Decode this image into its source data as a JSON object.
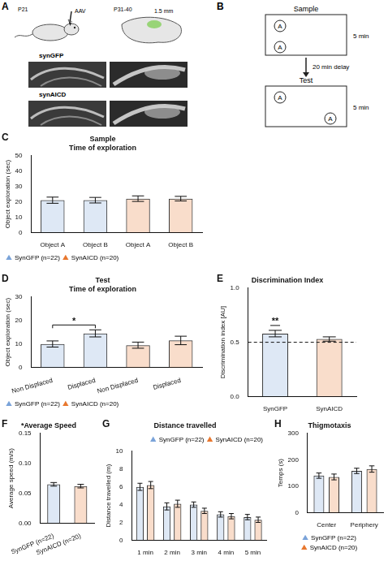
{
  "panels": {
    "A": {
      "label": "A",
      "texts": {
        "age_injection": "P21",
        "injection": "AAV",
        "age_test": "P31-40",
        "depth": "1.5 mm"
      },
      "rows": [
        "synGFP",
        "synAICD"
      ]
    },
    "B": {
      "label": "B",
      "phases": [
        {
          "name": "Sample",
          "duration": "5 min",
          "object": "A"
        },
        {
          "name": "Test",
          "duration": "5 min",
          "object": "A"
        }
      ],
      "delay": "20 min delay"
    }
  },
  "chart_data": [
    {
      "panel": "C",
      "type": "bar",
      "title": "Sample",
      "subtitle": "Time of exploration",
      "y_label": "Object exploration (sec)",
      "categories": [
        "Object A",
        "Object B",
        "Object A",
        "Object B"
      ],
      "series": [
        {
          "name": "SynGFP (n=22)",
          "color": "#7aa3d9",
          "marker": "triangle",
          "values": [
            21,
            21,
            null,
            null
          ],
          "errors": [
            2,
            1.8,
            null,
            null
          ]
        },
        {
          "name": "SynAICD (n=20)",
          "color": "#e8772e",
          "marker": "triangle",
          "values": [
            null,
            null,
            22,
            22
          ],
          "errors": [
            null,
            null,
            1.8,
            1.5
          ]
        }
      ],
      "ylim": [
        0,
        50
      ],
      "yticks": [
        0,
        10,
        20,
        30,
        40,
        50
      ],
      "grid": false,
      "legend": "bottom"
    },
    {
      "panel": "D",
      "type": "bar",
      "title": "Test",
      "subtitle": "Time of exploration",
      "y_label": "Object exploration (sec)",
      "categories": [
        "Non Displaced",
        "Displaced",
        "Non Displaced",
        "Displaced"
      ],
      "series": [
        {
          "name": "SynGFP (n=22)",
          "color": "#7aa3d9",
          "marker": "triangle",
          "values": [
            10,
            14.5,
            null,
            null
          ],
          "errors": [
            1.3,
            1.5,
            null,
            null
          ]
        },
        {
          "name": "SynAICD (n=20)",
          "color": "#e8772e",
          "marker": "triangle",
          "values": [
            null,
            null,
            9.5,
            11.5
          ],
          "errors": [
            null,
            null,
            1.3,
            1.8
          ]
        }
      ],
      "annotations": [
        {
          "text": "*",
          "series": "SynGFP (n=22)",
          "between": [
            "Non Displaced",
            "Displaced"
          ]
        }
      ],
      "ylim": [
        0,
        30
      ],
      "yticks": [
        0,
        10,
        20,
        30
      ],
      "grid": false,
      "legend": "bottom"
    },
    {
      "panel": "E",
      "type": "bar",
      "title": "Discrimination Index",
      "y_label": "Discrimination index [AU]",
      "categories": [
        "SynGFP",
        "SynAICD"
      ],
      "values": [
        0.58,
        0.53
      ],
      "errors": [
        0.03,
        0.02
      ],
      "colors": [
        "#7aa3d9",
        "#e8772e"
      ],
      "reference_lines": [
        {
          "value": 0.5,
          "line_style": "dashed"
        }
      ],
      "annotations": [
        {
          "text": "**",
          "between": [
            "SynGFP"
          ]
        }
      ],
      "ylim": [
        0,
        1
      ],
      "yticks": [
        {
          "value": 0,
          "label": "0.0"
        },
        {
          "value": 0.5,
          "label": "0.5"
        },
        {
          "value": 1,
          "label": "1.0"
        }
      ],
      "grid": false
    },
    {
      "panel": "F",
      "type": "bar",
      "title": "*Average Speed",
      "y_label": "Average speed (m/s)",
      "categories": [
        "SynGFP (n=22)",
        "SynAICD (n=20)"
      ],
      "values": [
        0.065,
        0.062
      ],
      "errors": [
        0.003,
        0.003
      ],
      "colors": [
        "#7aa3d9",
        "#e8772e"
      ],
      "ylim": [
        0,
        0.15
      ],
      "yticks": [
        {
          "value": 0,
          "label": "0.00"
        },
        {
          "value": 0.05,
          "label": "0.05"
        },
        {
          "value": 0.1,
          "label": "0.10"
        },
        {
          "value": 0.15,
          "label": "0.15"
        }
      ],
      "grid": false
    },
    {
      "panel": "G",
      "type": "bar",
      "title": "Distance travelled",
      "y_label": "Distance travelled (m)",
      "categories": [
        "1 min",
        "2 min",
        "3 min",
        "4 min",
        "5 min"
      ],
      "series": [
        {
          "name": "SynGFP (n=22)",
          "color": "#7aa3d9",
          "marker": "triangle",
          "values": [
            6.0,
            3.8,
            4.0,
            2.9,
            2.6
          ],
          "errors": [
            0.4,
            0.4,
            0.3,
            0.3,
            0.3
          ]
        },
        {
          "name": "SynAICD (n=20)",
          "color": "#e8772e",
          "marker": "triangle",
          "values": [
            6.2,
            4.1,
            3.3,
            2.7,
            2.3
          ],
          "errors": [
            0.4,
            0.4,
            0.3,
            0.3,
            0.3
          ]
        }
      ],
      "ylim": [
        0,
        10
      ],
      "yticks": [
        0,
        2,
        4,
        6,
        8,
        10
      ],
      "grid": false,
      "legend": "top-right"
    },
    {
      "panel": "H",
      "type": "bar",
      "title": "Thigmotaxis",
      "y_label": "Temps (s)",
      "categories": [
        "Center",
        "Periphery"
      ],
      "series": [
        {
          "name": "SynGFP (n=22)",
          "color": "#7aa3d9",
          "marker": "triangle",
          "values": [
            140,
            158
          ],
          "errors": [
            10,
            10
          ]
        },
        {
          "name": "SynAICD (n=20)",
          "color": "#e8772e",
          "marker": "triangle",
          "values": [
            135,
            165
          ],
          "errors": [
            11,
            12
          ]
        }
      ],
      "ylim": [
        0,
        300
      ],
      "yticks": [
        0,
        100,
        200,
        300
      ],
      "grid": false,
      "legend": "bottom"
    }
  ]
}
